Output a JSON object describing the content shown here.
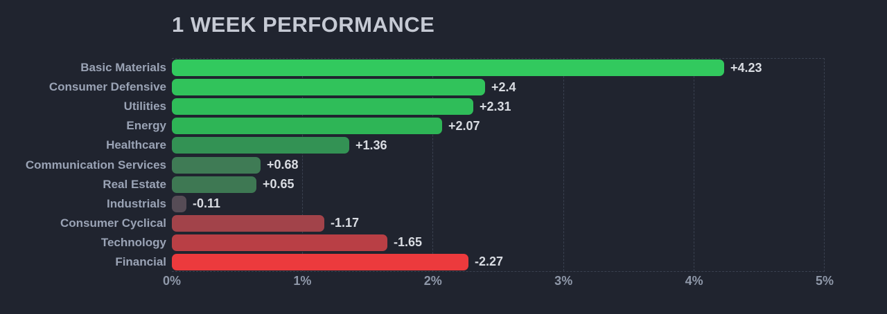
{
  "title": "1 WEEK PERFORMANCE",
  "chart_data": {
    "type": "bar",
    "orientation": "horizontal",
    "title": "1 WEEK PERFORMANCE",
    "categories": [
      "Basic Materials",
      "Consumer Defensive",
      "Utilities",
      "Energy",
      "Healthcare",
      "Communication Services",
      "Real Estate",
      "Industrials",
      "Consumer Cyclical",
      "Technology",
      "Financial"
    ],
    "values": [
      4.23,
      2.4,
      2.31,
      2.07,
      1.36,
      0.68,
      0.65,
      -0.11,
      -1.17,
      -1.65,
      -2.27
    ],
    "value_labels": [
      "+4.23",
      "+2.4",
      "+2.31",
      "+2.07",
      "+1.36",
      "+0.68",
      "+0.65",
      "-0.11",
      "-1.17",
      "-1.65",
      "-2.27"
    ],
    "bar_colors": [
      "#32c95e",
      "#31c35b",
      "#2fbd59",
      "#2eb556",
      "#339254",
      "#3f7b55",
      "#3e7853",
      "#564c56",
      "#a2434a",
      "#b93f45",
      "#ec3a3d"
    ],
    "x_ticks": [
      "0%",
      "1%",
      "2%",
      "3%",
      "4%",
      "5%"
    ],
    "xlim": [
      0,
      5
    ],
    "bar_length_mode": "absolute-value",
    "grid": "dashed-vertical-per-percent",
    "legend": "none"
  },
  "colors": {
    "background": "#20242f",
    "grid": "#3a4150",
    "title_text": "#c6cad4",
    "label_text": "#9aa3b5",
    "value_text": "#d9dce2",
    "tick_text": "#8f98a9"
  }
}
